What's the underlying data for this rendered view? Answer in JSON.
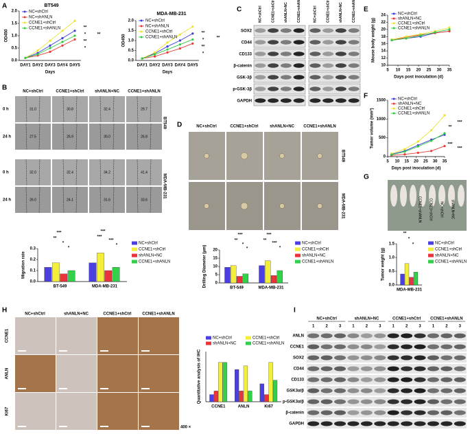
{
  "letters": [
    "A",
    "B",
    "C",
    "D",
    "E",
    "F",
    "G",
    "H",
    "I"
  ],
  "chart_data": [
    {
      "type": "line",
      "title": "BT549",
      "xlabel": "Days",
      "ylabel": "OD450",
      "categories": [
        "DAY1",
        "DAY2",
        "DAY3",
        "DAY4",
        "DAY5"
      ],
      "series": [
        {
          "name": "NC+shCtrl",
          "color": "#3a3ad8",
          "values": [
            0.1,
            0.3,
            0.6,
            0.9,
            1.2
          ]
        },
        {
          "name": "NC+shANLN",
          "color": "#e53935",
          "values": [
            0.1,
            0.2,
            0.35,
            0.6,
            0.85
          ]
        },
        {
          "name": "CCNE1+shCtrl",
          "color": "#eee22e",
          "values": [
            0.1,
            0.4,
            0.8,
            1.2,
            1.6
          ]
        },
        {
          "name": "CCNE1+shANLN",
          "color": "#2ecc40",
          "values": [
            0.1,
            0.25,
            0.5,
            0.75,
            1.0
          ]
        }
      ],
      "ylim": [
        0,
        2
      ],
      "yticks": [
        {
          "value": 0,
          "label": "0.0"
        },
        0.5,
        {
          "value": 1,
          "label": "1.0"
        },
        1.5,
        {
          "value": 2,
          "label": "2.0"
        }
      ],
      "annotations": [
        "**",
        "*",
        "**",
        "*",
        "**"
      ]
    },
    {
      "type": "line",
      "title": "MDA-MB-231",
      "xlabel": "Days",
      "ylabel": "OD450",
      "categories": [
        "DAY1",
        "DAY2",
        "DAY3",
        "DAY4",
        "DAY5"
      ],
      "series": [
        {
          "name": "NC+shCtrl",
          "color": "#3a3ad8",
          "values": [
            0.1,
            0.35,
            0.7,
            1.0,
            1.35
          ]
        },
        {
          "name": "NC+shANLN",
          "color": "#e53935",
          "values": [
            0.1,
            0.2,
            0.4,
            0.6,
            0.85
          ]
        },
        {
          "name": "CCNE1+shCtrl",
          "color": "#eee22e",
          "values": [
            0.1,
            0.4,
            0.9,
            1.3,
            1.7
          ]
        },
        {
          "name": "CCNE1+shANLN",
          "color": "#2ecc40",
          "values": [
            0.1,
            0.3,
            0.55,
            0.8,
            1.05
          ]
        }
      ],
      "ylim": [
        0,
        2
      ],
      "yticks": [
        {
          "value": 0,
          "label": "0.0"
        },
        0.5,
        {
          "value": 1,
          "label": "1.0"
        },
        1.5,
        {
          "value": 2,
          "label": "2.0"
        }
      ],
      "annotations": [
        "**",
        "*",
        "**",
        "*",
        "**"
      ]
    },
    {
      "type": "bar",
      "ylabel": "Migration rate",
      "categories": [
        "BT-549",
        "MDA-MB-231"
      ],
      "series": [
        {
          "name": "NC+shCtrl",
          "color": "#4a3fe0",
          "values": [
            0.13,
            0.17
          ]
        },
        {
          "name": "CCNE1+shCtrl",
          "color": "#f2ee3a",
          "values": [
            0.17,
            0.26
          ]
        },
        {
          "name": "shANLN+NC",
          "color": "#e8343a",
          "values": [
            0.07,
            0.1
          ]
        },
        {
          "name": "CCNE1+shANLN",
          "color": "#33d14a",
          "values": [
            0.1,
            0.13
          ]
        }
      ],
      "ylim": [
        0,
        0.3
      ],
      "yticks": [
        {
          "value": 0,
          "label": "0.0"
        },
        0.1,
        0.2,
        0.3
      ],
      "annotations": [
        "***",
        "**",
        "*",
        "*",
        "***",
        "***",
        "***",
        "*"
      ]
    },
    {
      "type": "bar",
      "ylabel": "Drilling Diameter (μm)",
      "categories": [
        "BT-549",
        "MDA-MB-231"
      ],
      "series": [
        {
          "name": "NC+shCtrl",
          "color": "#4a3fe0",
          "values": [
            9.5,
            10.5
          ]
        },
        {
          "name": "CCNE1+shCtrl",
          "color": "#f2ee3a",
          "values": [
            10.5,
            13.5
          ]
        },
        {
          "name": "shANLN+NC",
          "color": "#e8343a",
          "values": [
            4,
            4.5
          ]
        },
        {
          "name": "CCNE1+shANLN",
          "color": "#33d14a",
          "values": [
            5.5,
            7.5
          ]
        }
      ],
      "ylim": [
        0,
        20
      ],
      "yticks": [
        0,
        5,
        10,
        15,
        20
      ],
      "annotations": [
        "***",
        "**",
        "*",
        "*",
        "***",
        "**",
        "***",
        "*"
      ]
    },
    {
      "type": "line",
      "xlabel": "Days post inoculation (d)",
      "ylabel": "Mouse body weight (g)",
      "x": [
        7,
        14,
        21,
        28,
        35
      ],
      "series": [
        {
          "name": "NC+shCtrl",
          "color": "#3a3ad8",
          "values": [
            17,
            17.5,
            18,
            19,
            19.5
          ]
        },
        {
          "name": "shANLN+NC",
          "color": "#e53935",
          "values": [
            17,
            17.8,
            18.5,
            19,
            19.5
          ]
        },
        {
          "name": "CCNE1+shCtrl",
          "color": "#eee22e",
          "values": [
            17.2,
            18,
            18.7,
            19.5,
            20.5
          ]
        },
        {
          "name": "CCNE1+shANLN",
          "color": "#2ecc40",
          "values": [
            17,
            17.5,
            18.3,
            19.2,
            20
          ]
        }
      ],
      "xlim": [
        5,
        35
      ],
      "xticks": [
        5,
        10,
        15,
        20,
        25,
        30,
        35
      ],
      "ylim": [
        10,
        24
      ],
      "yticks": [
        10,
        12,
        14,
        16,
        18,
        20,
        22,
        24
      ]
    },
    {
      "type": "line",
      "xlabel": "Days post inoculation (d)",
      "ylabel": "Tumor volume (mm³)",
      "x": [
        7,
        14,
        21,
        28,
        35
      ],
      "series": [
        {
          "name": "NC+shCtrl",
          "color": "#3a3ad8",
          "values": [
            60,
            150,
            300,
            450,
            580
          ]
        },
        {
          "name": "shANLN+NC",
          "color": "#e53935",
          "values": [
            30,
            60,
            100,
            150,
            280
          ]
        },
        {
          "name": "CCNE1+shCtrl",
          "color": "#eee22e",
          "values": [
            80,
            200,
            400,
            700,
            1100
          ]
        },
        {
          "name": "CCNE1+shANLN",
          "color": "#2ecc40",
          "values": [
            50,
            130,
            270,
            420,
            620
          ]
        }
      ],
      "xlim": [
        5,
        35
      ],
      "xticks": [
        5,
        10,
        15,
        20,
        25,
        30,
        35
      ],
      "ylim": [
        0,
        1500
      ],
      "yticks": [
        0,
        500,
        1000,
        1500
      ],
      "annotations": [
        "**",
        "***",
        "***",
        "***"
      ]
    },
    {
      "type": "bar",
      "ylabel": "Tumor weight (g)",
      "categories": [
        "MDA-MB-231"
      ],
      "series": [
        {
          "name": "NC+shCtrl",
          "color": "#4a3fe0",
          "values": [
            0.4
          ]
        },
        {
          "name": "CCNE1+shCtrl",
          "color": "#f2ee3a",
          "values": [
            0.78
          ]
        },
        {
          "name": "shANLN+NC",
          "color": "#e8343a",
          "values": [
            0.28
          ]
        },
        {
          "name": "CCNE1+shANLN",
          "color": "#33d14a",
          "values": [
            0.47
          ]
        }
      ],
      "ylim": [
        0,
        1.5
      ],
      "yticks": [
        {
          "value": 0,
          "label": "0.0"
        },
        0.5,
        {
          "value": 1,
          "label": "1.0"
        },
        1.5
      ],
      "annotations": [
        "**",
        "*",
        "*"
      ]
    },
    {
      "type": "bar",
      "ylabel": "Quantitative analysis of IHC",
      "categories": [
        "CCNE1",
        "ANLN",
        "Ki67"
      ],
      "series": [
        {
          "name": "NC+shCtrl",
          "color": "#4a3fe0",
          "values": [
            2,
            9,
            5
          ]
        },
        {
          "name": "shANLN+NC",
          "color": "#e8343a",
          "values": [
            3,
            3,
            2
          ]
        },
        {
          "name": "CCNE1+shCtrl",
          "color": "#f2ee3a",
          "values": [
            11,
            10,
            11
          ]
        },
        {
          "name": "CCNE1+shANLN",
          "color": "#33d14a",
          "values": [
            11,
            3,
            6
          ]
        }
      ],
      "ylim": [
        0,
        14
      ]
    }
  ],
  "scratch": {
    "columns": [
      "NC+shCtrl",
      "CCNE1+shCtrl",
      "shANLN+NC",
      "CCNE1+shANLN"
    ],
    "rows": [
      "0 h",
      "24 h",
      "0 h",
      "24 h"
    ],
    "lines": [
      "BT549",
      "MDA-MB-231"
    ],
    "widths": [
      [
        "31.0",
        "30.8",
        "32.4",
        "29.7"
      ],
      [
        "27.5",
        "26.9",
        "30.0",
        "26.8"
      ],
      [
        "32.0",
        "32.4",
        "34.2",
        "41.4"
      ],
      [
        "26.0",
        "24.1",
        "31.6",
        "33.6"
      ]
    ]
  },
  "blot_c": {
    "columns": [
      "NC+shCtrl",
      "CCNE1+shCtrl",
      "shANLN+NC",
      "CCNE1+shANLN",
      "NC+shCtrl",
      "CCNE1+shCtrl",
      "shANLN+NC",
      "CCNE1+shANLN"
    ],
    "rows": [
      "SOX2",
      "CD44",
      "CD133",
      "β-catenin",
      "GSK-3β",
      "p-GSK-3β",
      "GAPDH"
    ]
  },
  "spheres": {
    "columns": [
      "NC+shCtrl",
      "CCNE1+shCtrl",
      "shANLN+NC",
      "CCNE1+shANLN"
    ],
    "rows": [
      "BT549",
      "MDA-MB-231"
    ]
  },
  "mice": {
    "labels": [
      "CCNE1+shANLN",
      "CCNE1+shCtrl",
      "NC+shCtrl",
      "shANLN+NC"
    ]
  },
  "ihc": {
    "columns": [
      "NC+shCtrl",
      "shANLN+NC",
      "CCNE1+shCtrl",
      "CCNE1+shANLN"
    ],
    "rows": [
      "CCNE1",
      "ANLN",
      "Ki67"
    ],
    "magnification": "400 ×"
  },
  "blot_i": {
    "groups": [
      "NC+shCtrl",
      "shANLN+NC",
      "CCNE1+shCtrl",
      "CCNE1+shANLN"
    ],
    "lanes": [
      "1",
      "2",
      "3"
    ],
    "rows": [
      "ANLN",
      "CCNE1",
      "SOX2",
      "CD44",
      "CD133",
      "GSK3α/β",
      "p-GSK3α/β",
      "β-catenin",
      "GAPDH"
    ]
  }
}
